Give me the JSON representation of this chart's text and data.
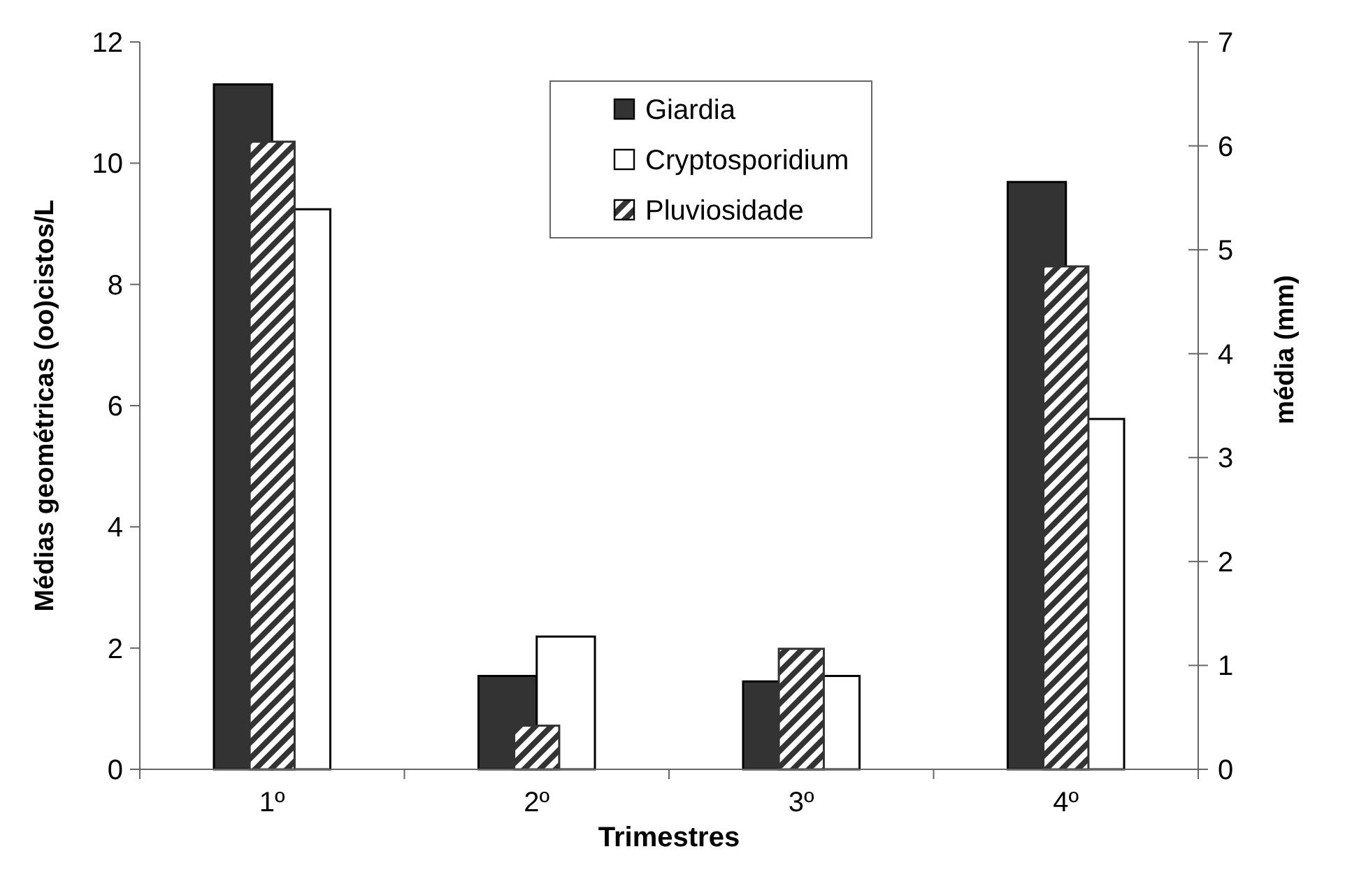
{
  "chart_data": {
    "type": "bar",
    "xlabel": "Trimestres",
    "ylabel": "Médias geométricas (oo)cistos/L",
    "y2label": "média (mm)",
    "categories": [
      "1º",
      "2º",
      "3º",
      "4º"
    ],
    "series": [
      {
        "name": "Giardia",
        "color": "#333333",
        "values": [
          11.3,
          1.54,
          1.45,
          9.69
        ]
      },
      {
        "name": "Cryptosporidium",
        "color": "#ffffff",
        "values": [
          9.24,
          2.19,
          1.54,
          5.78
        ]
      },
      {
        "name": "Pluviosidade",
        "color": "#333333",
        "axis": "y2",
        "values": [
          6.04,
          0.42,
          1.16,
          4.84
        ]
      }
    ],
    "ylim": [
      0,
      12
    ],
    "yticks": [
      0,
      2,
      4,
      6,
      8,
      10,
      12
    ],
    "y2lim": [
      0,
      7
    ],
    "y2ticks": [
      0,
      1,
      2,
      3,
      4,
      5,
      6,
      7
    ],
    "grid": false,
    "legend": "top"
  }
}
